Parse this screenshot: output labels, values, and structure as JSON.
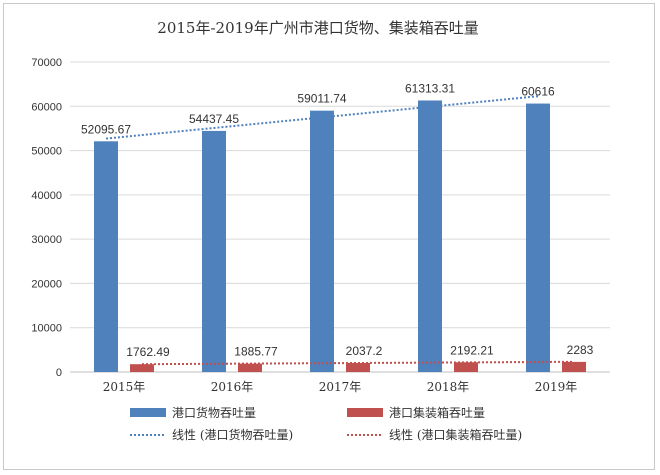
{
  "chart_data": {
    "type": "bar",
    "title": "2015年-2019年广州市港口货物、集装箱吞吐量",
    "xlabel": "",
    "ylabel": "",
    "categories": [
      "2015年",
      "2016年",
      "2017年",
      "2018年",
      "2019年"
    ],
    "ylim": [
      0,
      70000
    ],
    "yticks": [
      0,
      10000,
      20000,
      30000,
      40000,
      50000,
      60000,
      70000
    ],
    "grid": true,
    "legend_position": "bottom",
    "series": [
      {
        "name": "港口货物吞吐量",
        "color": "#4f81bd",
        "values": [
          52095.67,
          54437.45,
          59011.74,
          61313.31,
          60616
        ],
        "labels": [
          "52095.67",
          "54437.45",
          "59011.74",
          "61313.31",
          "60616"
        ]
      },
      {
        "name": "港口集装箱吞吐量",
        "color": "#c0504d",
        "values": [
          1762.49,
          1885.77,
          2037.2,
          2192.21,
          2283
        ],
        "labels": [
          "1762.49",
          "1885.77",
          "2037.2",
          "2192.21",
          "2283"
        ]
      }
    ],
    "trendlines": [
      {
        "name": "线性 (港口货物吞吐量)",
        "color": "#4f81bd",
        "style": "dotted"
      },
      {
        "name": "线性 (港口集装箱吞吐量)",
        "color": "#c0504d",
        "style": "dotted"
      }
    ]
  }
}
